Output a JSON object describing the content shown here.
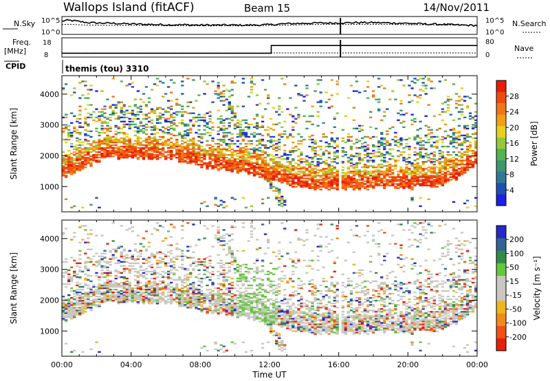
{
  "header": {
    "station": "Wallops Island (fitACF)",
    "beam": "Beam 15",
    "date": "14/Nov/2011"
  },
  "colors": {
    "power_scale": [
      "#1e1ee6",
      "#1e50b4",
      "#327896",
      "#3c966e",
      "#50b450",
      "#96c83c",
      "#e6d21e",
      "#f0a014",
      "#f07814",
      "#f04b0f",
      "#e61e0a"
    ],
    "velocity_scale": [
      "#e61e0a",
      "#f05014",
      "#f08c14",
      "#f0b41e",
      "#c8c8c0",
      "#c8c8c0",
      "#64c83c",
      "#328c46",
      "#326496",
      "#2828c8"
    ],
    "line": "#000000"
  },
  "chart_data": [
    {
      "type": "line",
      "panel": "noise",
      "left_label": "N.Sky",
      "right_label": "N.Search",
      "left_ticks": [
        "10^5",
        "10^0"
      ],
      "right_ticks": [
        "10^5",
        "10^0"
      ],
      "ylim": [
        0,
        5
      ],
      "x_hours": [
        0,
        0.25,
        0.5,
        1,
        1.5,
        2,
        3,
        4,
        5,
        6,
        7,
        8,
        9,
        10,
        11,
        12,
        13,
        14,
        15,
        16,
        17,
        18,
        19,
        20,
        21,
        22,
        23,
        24
      ],
      "sky": [
        3.7,
        3.9,
        3.9,
        3.6,
        3.3,
        3.2,
        3.1,
        2.9,
        2.8,
        2.7,
        2.7,
        2.6,
        2.6,
        2.6,
        2.6,
        2.7,
        3.0,
        3.1,
        3.2,
        3.2,
        3.3,
        3.3,
        3.2,
        3.1,
        2.9,
        2.8,
        2.6,
        2.5
      ],
      "search": [
        2.7,
        2.8,
        2.8,
        2.7,
        2.6,
        2.6,
        2.5,
        2.5,
        2.5,
        2.4,
        2.4,
        2.4,
        2.4,
        2.4,
        2.4,
        2.5,
        2.6,
        2.7,
        2.8,
        2.8,
        2.8,
        2.8,
        2.8,
        2.7,
        2.7,
        2.6,
        2.6,
        2.5
      ]
    },
    {
      "type": "line",
      "panel": "frequency",
      "left_label": "Freq.",
      "left_unit": "[MHz]",
      "right_label": "Nave",
      "left_ticks": [
        "18",
        "8"
      ],
      "right_ticks": [
        "80",
        "0"
      ],
      "freq_steps": [
        {
          "from": 0.0,
          "to": 12.1,
          "value": 10
        },
        {
          "from": 12.1,
          "to": 24.0,
          "value": 14
        }
      ],
      "nave_level": 0
    },
    {
      "type": "text",
      "panel": "cpid",
      "label": "CPID",
      "program": "themis (tou) 3310"
    },
    {
      "type": "heatmap",
      "panel": "power",
      "ylabel": "Slant Range [km]",
      "colorbar_label": "Power [dB]",
      "colorbar_ticks": [
        "28",
        "24",
        "20",
        "16",
        "12",
        "8",
        "4"
      ],
      "xlim": [
        0,
        24
      ],
      "ylim": [
        180,
        4600
      ],
      "y_ticks": [
        "1000",
        "2000",
        "3000",
        "4000"
      ],
      "x_ticks": [
        "00:00",
        "04:00",
        "08:00",
        "12:00",
        "16:00",
        "20:00",
        "00:00"
      ],
      "lower_edge_hours": [
        0,
        1,
        2,
        3,
        4,
        5,
        6,
        7,
        8,
        9,
        10,
        11,
        12,
        13,
        14,
        15,
        16,
        17,
        18,
        19,
        20,
        21,
        22,
        23,
        24
      ],
      "lower_edge_km": [
        1250,
        1500,
        1800,
        1900,
        1900,
        1900,
        1900,
        1800,
        1650,
        1550,
        1500,
        1350,
        1200,
        1050,
        950,
        900,
        900,
        900,
        950,
        950,
        900,
        950,
        1000,
        1300,
        1700
      ]
    },
    {
      "type": "heatmap",
      "panel": "velocity",
      "ylabel": "Slant Range [km]",
      "xlabel": "Time UT",
      "colorbar_label": "Velocity [m s⁻¹]",
      "colorbar_ticks": [
        "200",
        "100",
        "50",
        "15",
        "-15",
        "-50",
        "-100",
        "-200"
      ],
      "xlim": [
        0,
        24
      ],
      "ylim": [
        180,
        4600
      ],
      "y_ticks": [
        "1000",
        "2000",
        "3000",
        "4000"
      ],
      "x_ticks": [
        "00:00",
        "04:00",
        "08:00",
        "12:00",
        "16:00",
        "20:00",
        "00:00"
      ]
    }
  ]
}
